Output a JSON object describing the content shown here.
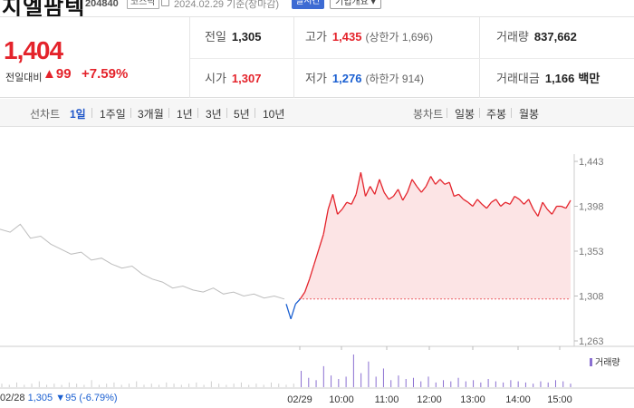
{
  "stock": {
    "name": "지엘팜텍",
    "code": "204840",
    "market": "코스닥",
    "date_line": "2024.02.29 기준(장마감)",
    "realtime_label": "실시간",
    "info_label": "기업개요 ▾"
  },
  "summary": {
    "price": "1,404",
    "change_label": "전일대비",
    "change_value": "▲99",
    "change_pct": "+7.59%",
    "prev_close_label": "전일",
    "prev_close": "1,305",
    "open_label": "시가",
    "open": "1,307",
    "high_label": "고가",
    "high": "1,435",
    "upper_limit": "(상한가 1,696)",
    "low_label": "저가",
    "low": "1,276",
    "lower_limit": "(하한가 914)",
    "volume_label": "거래량",
    "volume": "837,662",
    "amount_label": "거래대금",
    "amount": "1,166",
    "amount_unit": "백만"
  },
  "periodbar": {
    "line_label": "선차트",
    "periods": [
      "1일",
      "1주일",
      "3개월",
      "1년",
      "3년",
      "5년",
      "10년"
    ],
    "active_period": "1일",
    "candle_label": "봉차트",
    "candles": [
      "일봉",
      "주봉",
      "월봉"
    ]
  },
  "prev_info": {
    "date": "02/28",
    "price": "1,305",
    "change": "▼95",
    "pct": "(-6.79%)"
  },
  "volume_legend": "거래량",
  "colors": {
    "up": "#e4232b",
    "down": "#1a5fd1",
    "prev_day_line": "#bdbdbd",
    "volume": "#8a6fd1"
  },
  "chart_data": {
    "type": "line",
    "y_ticks": [
      "1,443",
      "1,398",
      "1,353",
      "1,308",
      "1,263"
    ],
    "x_ticks": [
      "02/28",
      "02/29",
      "10:00",
      "11:00",
      "12:00",
      "13:00",
      "14:00",
      "15:00"
    ],
    "ylim": [
      1263,
      1443
    ],
    "reference_price": 1305,
    "series": [
      {
        "values": [
          1375,
          1372,
          1380,
          1366,
          1368,
          1360,
          1355,
          1350,
          1352,
          1344,
          1346,
          1340,
          1336,
          1338,
          1330,
          1325,
          1322,
          1316,
          1318,
          1314,
          1312,
          1316,
          1310,
          1312,
          1308,
          1310,
          1306,
          1308,
          1305
        ]
      },
      {
        "values": [
          1300,
          1285,
          1300,
          1305,
          1312,
          1325,
          1340,
          1355,
          1370,
          1395,
          1410,
          1390,
          1395,
          1402,
          1400,
          1410,
          1432,
          1408,
          1418,
          1410,
          1425,
          1412,
          1405,
          1408,
          1415,
          1404,
          1412,
          1425,
          1418,
          1412,
          1418,
          1428,
          1420,
          1425,
          1420,
          1422,
          1408,
          1410,
          1405,
          1402,
          1398,
          1405,
          1400,
          1396,
          1402,
          1405,
          1398,
          1402,
          1400,
          1408,
          1405,
          1400,
          1405,
          1395,
          1388,
          1402,
          1395,
          1390,
          1398,
          1398,
          1396,
          1404
        ]
      }
    ],
    "volume": [
      3,
      2,
      4,
      2,
      3,
      5,
      2,
      3,
      2,
      4,
      3,
      2,
      6,
      2,
      3,
      4,
      2,
      3,
      5,
      2,
      3,
      2,
      4,
      3,
      2,
      3,
      4,
      2,
      5,
      3,
      2,
      3,
      4,
      2,
      3,
      2,
      4,
      3,
      2,
      3,
      14,
      8,
      6,
      18,
      10,
      7,
      9,
      28,
      12,
      22,
      9,
      16,
      6,
      10,
      7,
      8,
      5,
      9,
      4,
      6,
      5,
      8,
      5,
      6,
      4,
      7,
      5,
      4,
      6,
      5,
      4,
      3,
      5,
      4,
      6,
      5,
      3
    ]
  }
}
